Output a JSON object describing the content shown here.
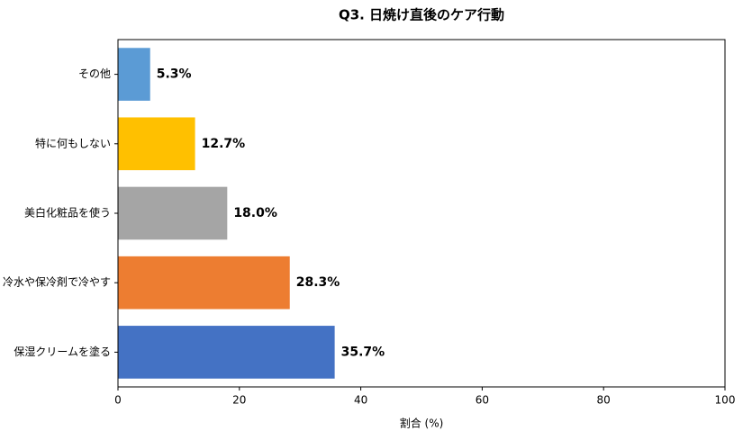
{
  "chart_data": {
    "type": "barh",
    "title": "Q3. 日焼け直後のケア行動",
    "xlabel": "割合 (%)",
    "categories": [
      "保湿クリームを塗る",
      "冷水や保冷剤で冷やす",
      "美白化粧品を使う",
      "特に何もしない",
      "その他"
    ],
    "values": [
      35.7,
      28.3,
      18.0,
      12.7,
      5.3
    ],
    "value_labels": [
      "35.7%",
      "28.3%",
      "18.0%",
      "12.7%",
      "5.3%"
    ],
    "colors": [
      "#4472c4",
      "#ed7d31",
      "#a5a5a5",
      "#ffc000",
      "#5b9bd5"
    ],
    "xlim": [
      0,
      100
    ],
    "xticks": [
      0,
      20,
      40,
      60,
      80,
      100
    ]
  }
}
